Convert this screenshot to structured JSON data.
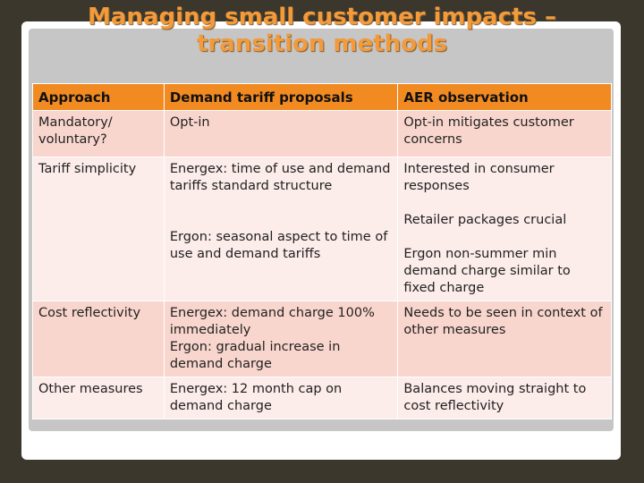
{
  "slide": {
    "title_line1": "Managing small customer impacts –",
    "title_line2": "transition methods"
  },
  "table": {
    "headers": [
      "Approach",
      "Demand tariff proposals",
      "AER observation"
    ],
    "rows": [
      {
        "approach": "Mandatory/ voluntary?",
        "proposal": [
          "Opt-in"
        ],
        "observation": [
          "Opt-in mitigates customer concerns"
        ]
      },
      {
        "approach": "Tariff simplicity",
        "proposal": [
          "Energex: time of use and demand tariffs standard structure",
          "Ergon: seasonal aspect to time of use and demand tariffs"
        ],
        "observation": [
          "Interested in consumer responses",
          "Retailer packages crucial",
          "Ergon non-summer min demand charge similar to fixed charge"
        ]
      },
      {
        "approach": "Cost reflectivity",
        "proposal": [
          "Energex: demand charge 100% immediately",
          "Ergon: gradual increase in demand charge"
        ],
        "observation": [
          "Needs to be seen in context of other measures"
        ]
      },
      {
        "approach": "Other measures",
        "proposal": [
          "Energex: 12 month cap on demand charge"
        ],
        "observation": [
          "Balances moving straight to cost reflectivity"
        ]
      }
    ]
  }
}
